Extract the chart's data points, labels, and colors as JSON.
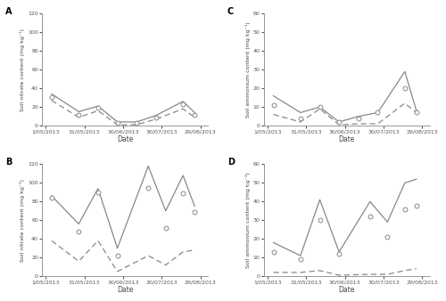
{
  "panels": {
    "A": {
      "title": "A",
      "ylabel": "Soil nitrate content (mg kg⁻¹)",
      "ylim": [
        0,
        120
      ],
      "yticks": [
        0,
        20,
        40,
        60,
        80,
        100,
        120
      ],
      "means_x": [
        0.15,
        0.85,
        1.35,
        1.85,
        2.35,
        2.85,
        3.55,
        3.85
      ],
      "means_y": [
        31,
        12,
        19,
        3,
        3,
        9,
        23,
        12
      ],
      "solid_x": [
        0.15,
        0.85,
        1.35,
        1.85,
        2.35,
        2.85,
        3.55,
        3.85
      ],
      "solid_y": [
        34,
        15,
        21,
        4,
        4,
        11,
        26,
        14
      ],
      "dashed_x": [
        0.15,
        0.85,
        1.35,
        1.85,
        2.35,
        2.85,
        3.55,
        3.85
      ],
      "dashed_y": [
        27,
        9,
        16,
        1,
        1,
        7,
        18,
        9
      ]
    },
    "B": {
      "title": "B",
      "ylabel": "Soil nitrate content (mg kg⁻¹)",
      "ylim": [
        0,
        120
      ],
      "yticks": [
        0,
        20,
        40,
        60,
        80,
        100,
        120
      ],
      "means_x": [
        0.15,
        0.85,
        1.35,
        1.85,
        2.65,
        3.1,
        3.55,
        3.85
      ],
      "means_y": [
        84,
        48,
        90,
        22,
        95,
        52,
        89,
        69
      ],
      "solid_x": [
        0.15,
        0.85,
        1.35,
        1.85,
        2.65,
        3.1,
        3.55,
        3.85
      ],
      "solid_y": [
        86,
        56,
        94,
        30,
        118,
        70,
        108,
        75
      ],
      "dashed_x": [
        0.15,
        0.85,
        1.35,
        1.85,
        2.65,
        3.1,
        3.55,
        3.85
      ],
      "dashed_y": [
        38,
        16,
        38,
        5,
        22,
        12,
        26,
        28
      ]
    },
    "C": {
      "title": "C",
      "ylabel": "Soil ammonium content (mg kg⁻¹)",
      "ylim": [
        0,
        60
      ],
      "yticks": [
        0,
        10,
        20,
        30,
        40,
        50,
        60
      ],
      "means_x": [
        0.15,
        0.85,
        1.35,
        1.85,
        2.35,
        2.85,
        3.55,
        3.85
      ],
      "means_y": [
        11,
        4,
        10,
        2,
        4,
        7,
        20,
        7
      ],
      "solid_x": [
        0.15,
        0.85,
        1.35,
        1.85,
        2.35,
        2.85,
        3.55,
        3.85
      ],
      "solid_y": [
        16,
        7,
        10,
        2,
        5,
        7,
        29,
        8
      ],
      "dashed_x": [
        0.15,
        0.85,
        1.35,
        1.85,
        2.35,
        2.85,
        3.55,
        3.85
      ],
      "dashed_y": [
        6,
        2,
        9,
        0.5,
        1,
        1,
        12,
        7
      ]
    },
    "D": {
      "title": "D",
      "ylabel": "Soil ammonium content (mg kg⁻¹)",
      "ylim": [
        0,
        60
      ],
      "yticks": [
        0,
        10,
        20,
        30,
        40,
        50,
        60
      ],
      "means_x": [
        0.15,
        0.85,
        1.35,
        1.85,
        2.65,
        3.1,
        3.55,
        3.85
      ],
      "means_y": [
        13,
        9,
        30,
        12,
        32,
        21,
        36,
        38
      ],
      "solid_x": [
        0.15,
        0.85,
        1.35,
        1.85,
        2.65,
        3.1,
        3.55,
        3.85
      ],
      "solid_y": [
        18,
        11,
        41,
        13,
        40,
        29,
        50,
        52
      ],
      "dashed_x": [
        0.15,
        0.85,
        1.35,
        1.85,
        2.65,
        3.1,
        3.55,
        3.85
      ],
      "dashed_y": [
        2,
        2,
        3,
        0.5,
        1,
        1,
        3,
        4
      ]
    }
  },
  "xtick_positions": [
    0,
    1,
    2,
    3,
    4
  ],
  "xtick_labels": [
    "1/05/2013",
    "31/05/2013",
    "30/06/2013",
    "30/07/2013",
    "29/08/2013"
  ],
  "xlabel": "Date",
  "line_color": "#888888",
  "marker_facecolor": "white",
  "marker_edgecolor": "#888888"
}
